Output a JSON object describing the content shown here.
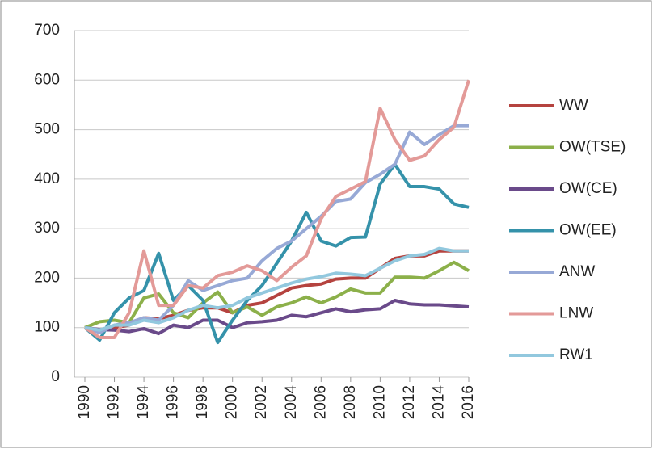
{
  "chart_data": {
    "type": "line",
    "x": [
      1990,
      1991,
      1992,
      1993,
      1994,
      1995,
      1996,
      1997,
      1998,
      1999,
      2000,
      2001,
      2002,
      2003,
      2004,
      2005,
      2006,
      2007,
      2008,
      2009,
      2010,
      2011,
      2012,
      2013,
      2014,
      2015,
      2016
    ],
    "xlim": [
      1990,
      2016
    ],
    "xticks": [
      1990,
      1992,
      1994,
      1996,
      1998,
      2000,
      2002,
      2004,
      2006,
      2008,
      2010,
      2012,
      2014,
      2016
    ],
    "ylim": [
      0,
      700
    ],
    "yticks": [
      0,
      100,
      200,
      300,
      400,
      500,
      600,
      700
    ],
    "grid": true,
    "legend": "right",
    "series": [
      {
        "name": "WW",
        "color": "#b5433f",
        "values": [
          100,
          95,
          100,
          105,
          120,
          118,
          125,
          135,
          140,
          140,
          130,
          145,
          150,
          165,
          180,
          185,
          188,
          198,
          200,
          200,
          220,
          240,
          245,
          245,
          255,
          255,
          255
        ]
      },
      {
        "name": "OW(TSE)",
        "color": "#8cb04a",
        "values": [
          100,
          112,
          115,
          110,
          160,
          168,
          130,
          120,
          150,
          172,
          130,
          142,
          125,
          142,
          150,
          162,
          150,
          162,
          178,
          170,
          170,
          202,
          202,
          200,
          215,
          232,
          215
        ]
      },
      {
        "name": "OW(CE)",
        "color": "#6a4a8a",
        "values": [
          100,
          96,
          95,
          92,
          98,
          88,
          105,
          100,
          115,
          115,
          100,
          110,
          112,
          115,
          125,
          122,
          130,
          138,
          132,
          136,
          138,
          155,
          148,
          146,
          146,
          144,
          142
        ]
      },
      {
        "name": "OW(EE)",
        "color": "#3592aa",
        "values": [
          100,
          75,
          130,
          160,
          175,
          250,
          155,
          185,
          155,
          70,
          115,
          155,
          185,
          230,
          275,
          333,
          275,
          265,
          282,
          283,
          390,
          430,
          385,
          385,
          380,
          350,
          343
        ]
      },
      {
        "name": "ANW",
        "color": "#97a9d6",
        "values": [
          100,
          90,
          105,
          110,
          120,
          115,
          145,
          195,
          175,
          185,
          195,
          200,
          235,
          260,
          275,
          300,
          325,
          355,
          360,
          393,
          410,
          430,
          495,
          470,
          490,
          508,
          508
        ]
      },
      {
        "name": "LNW",
        "color": "#e39a98",
        "values": [
          100,
          80,
          80,
          130,
          255,
          145,
          145,
          185,
          180,
          205,
          212,
          225,
          215,
          195,
          222,
          245,
          320,
          365,
          380,
          395,
          543,
          480,
          438,
          447,
          480,
          505,
          600
        ]
      },
      {
        "name": "RW1",
        "color": "#92c8de",
        "values": [
          100,
          95,
          105,
          105,
          115,
          110,
          120,
          135,
          145,
          140,
          145,
          160,
          170,
          180,
          190,
          198,
          203,
          210,
          208,
          205,
          220,
          235,
          245,
          248,
          260,
          255,
          255
        ]
      }
    ]
  }
}
